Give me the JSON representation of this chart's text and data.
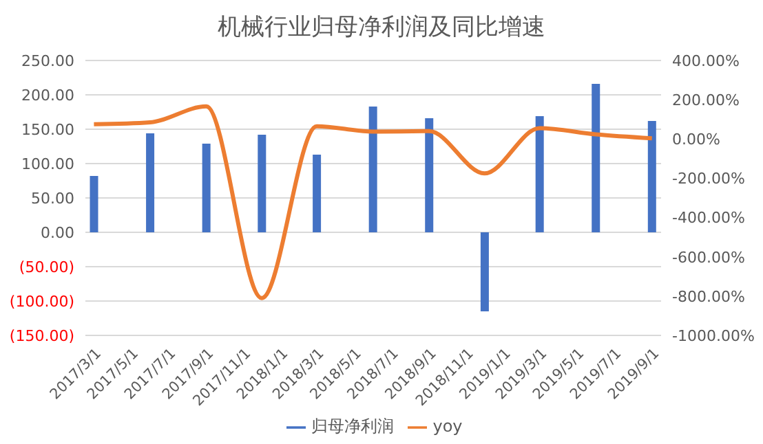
{
  "chart_data": {
    "type": "bar",
    "title": "机械行业归母净利润及同比增速",
    "x": [
      "2017-03-01",
      "2017-06-01",
      "2017-09-01",
      "2017-12-01",
      "2018-03-01",
      "2018-06-01",
      "2018-09-01",
      "2018-12-01",
      "2019-03-01",
      "2019-06-01",
      "2019-09-01"
    ],
    "series": [
      {
        "name": "归母净利润",
        "color": "#4472c4",
        "values": [
          82,
          144,
          129,
          142,
          113,
          183,
          166,
          -115,
          169,
          216,
          162
        ]
      },
      {
        "name": "yoy",
        "type": "line",
        "axis": "y2",
        "color": "#ed7d31",
        "values": [
          75,
          85,
          166,
          -810,
          65,
          38,
          40,
          -175,
          55,
          24,
          4
        ]
      }
    ],
    "xlim": [
      "2017-02-15",
      "2019-09-16"
    ],
    "xticks": [
      {
        "value": "2017-03-01",
        "label": "2017/3/1"
      },
      {
        "value": "2017-05-01",
        "label": "2017/5/1"
      },
      {
        "value": "2017-07-01",
        "label": "2017/7/1"
      },
      {
        "value": "2017-09-01",
        "label": "2017/9/1"
      },
      {
        "value": "2017-11-01",
        "label": "2017/11/1"
      },
      {
        "value": "2018-01-01",
        "label": "2018/1/1"
      },
      {
        "value": "2018-03-01",
        "label": "2018/3/1"
      },
      {
        "value": "2018-05-01",
        "label": "2018/5/1"
      },
      {
        "value": "2018-07-01",
        "label": "2018/7/1"
      },
      {
        "value": "2018-09-01",
        "label": "2018/9/1"
      },
      {
        "value": "2018-11-01",
        "label": "2018/11/1"
      },
      {
        "value": "2019-01-01",
        "label": "2019/1/1"
      },
      {
        "value": "2019-03-01",
        "label": "2019/3/1"
      },
      {
        "value": "2019-05-01",
        "label": "2019/5/1"
      },
      {
        "value": "2019-07-01",
        "label": "2019/7/1"
      },
      {
        "value": "2019-09-01",
        "label": "2019/9/1"
      }
    ],
    "ylim": [
      -150,
      250
    ],
    "yticks": [
      {
        "value": -150,
        "label": "(150.00)"
      },
      {
        "value": -100,
        "label": "(100.00)"
      },
      {
        "value": -50,
        "label": "(50.00)"
      },
      {
        "value": 0,
        "label": "0.00"
      },
      {
        "value": 50,
        "label": "50.00"
      },
      {
        "value": 100,
        "label": "100.00"
      },
      {
        "value": 150,
        "label": "150.00"
      },
      {
        "value": 200,
        "label": "200.00"
      },
      {
        "value": 250,
        "label": "250.00"
      }
    ],
    "y2lim": [
      -1000,
      400
    ],
    "y2ticks": [
      {
        "value": -1000,
        "label": "-1000.00%"
      },
      {
        "value": -800,
        "label": "-800.00%"
      },
      {
        "value": -600,
        "label": "-600.00%"
      },
      {
        "value": -400,
        "label": "-400.00%"
      },
      {
        "value": -200,
        "label": "-200.00%"
      },
      {
        "value": 0,
        "label": "0.00%"
      },
      {
        "value": 200,
        "label": "200.00%"
      },
      {
        "value": 400,
        "label": "400.00%"
      }
    ],
    "grid": "y",
    "legend": "bottom",
    "marker": "none",
    "line_style": "solid"
  }
}
